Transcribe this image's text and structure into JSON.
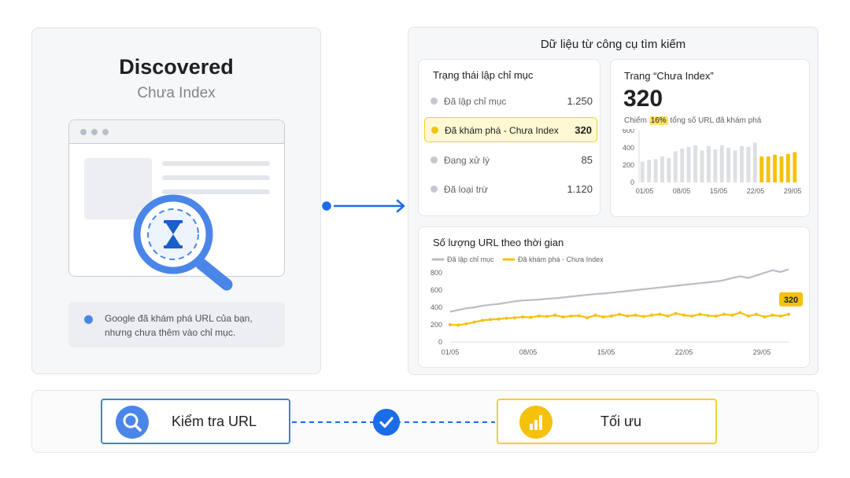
{
  "left": {
    "title": "Discovered",
    "subtitle": "Chưa Index",
    "note": "Google đã khám phá URL của bạn, nhưng chưa thêm vào chỉ mục."
  },
  "right": {
    "title": "Dữ liệu từ công cụ tìm kiếm",
    "status": {
      "title": "Trạng thái lập chỉ mục",
      "rows": [
        {
          "label": "Đã lập chỉ mục",
          "value": "1.250"
        },
        {
          "label": "Đã khám phá - Chưa Index",
          "value": "320"
        },
        {
          "label": "Đang xử lý",
          "value": "85"
        },
        {
          "label": "Đã loại trừ",
          "value": "1.120"
        }
      ]
    },
    "kpi": {
      "title": "Trang “Chưa Index”",
      "value": "320",
      "sub_prefix": "Chiếm",
      "percent": "16%",
      "sub_suffix": "tổng số URL đã khám phá"
    }
  },
  "colors": {
    "indexed": "#b9bdc3",
    "discovered": "#f4c20d",
    "primary": "#1a6ce8"
  },
  "chart_data": [
    {
      "type": "bar",
      "title": "",
      "x_ticks": [
        "01/05",
        "08/05",
        "15/05",
        "22/05",
        "29/05"
      ],
      "ylim": [
        0,
        600
      ],
      "y_ticks": [
        0,
        200,
        400,
        600
      ],
      "values": [
        240,
        260,
        270,
        300,
        280,
        360,
        390,
        410,
        430,
        370,
        420,
        380,
        430,
        400,
        370,
        420,
        410,
        460,
        300,
        300,
        320,
        300,
        330,
        350
      ],
      "highlight_from_index": 18,
      "series_colors": [
        "#dcdfe3",
        "#f4c20d"
      ]
    },
    {
      "type": "line",
      "title": "Số lượng URL theo thời gian",
      "x_ticks": [
        "01/05",
        "08/05",
        "15/05",
        "22/05",
        "29/05"
      ],
      "ylim": [
        0,
        800
      ],
      "y_ticks": [
        0,
        200,
        400,
        600,
        800
      ],
      "legend": "top-left",
      "series": [
        {
          "name": "Đã lập chỉ mục",
          "color": "#b9bdc3",
          "values": [
            350,
            370,
            390,
            400,
            420,
            430,
            440,
            455,
            470,
            480,
            485,
            490,
            500,
            505,
            515,
            525,
            535,
            545,
            555,
            560,
            570,
            580,
            590,
            600,
            610,
            620,
            630,
            640,
            650,
            660,
            670,
            680,
            690,
            700,
            715,
            740,
            760,
            740,
            770,
            800,
            830,
            810,
            840
          ]
        },
        {
          "name": "Đã khám phá - Chưa Index",
          "color": "#f4c20d",
          "values": [
            200,
            195,
            210,
            230,
            250,
            260,
            265,
            275,
            280,
            290,
            285,
            300,
            295,
            310,
            290,
            300,
            305,
            280,
            310,
            290,
            300,
            320,
            300,
            310,
            295,
            310,
            320,
            300,
            330,
            310,
            300,
            320,
            305,
            300,
            320,
            310,
            340,
            300,
            320,
            290,
            310,
            300,
            320
          ]
        }
      ],
      "annotation": "320"
    }
  ],
  "actions": {
    "check": {
      "label": "Kiểm tra URL",
      "icon": "search-icon"
    },
    "optimize": {
      "label": "Tối ưu",
      "icon": "bar-chart-icon"
    },
    "connector_icon": "check-icon"
  }
}
